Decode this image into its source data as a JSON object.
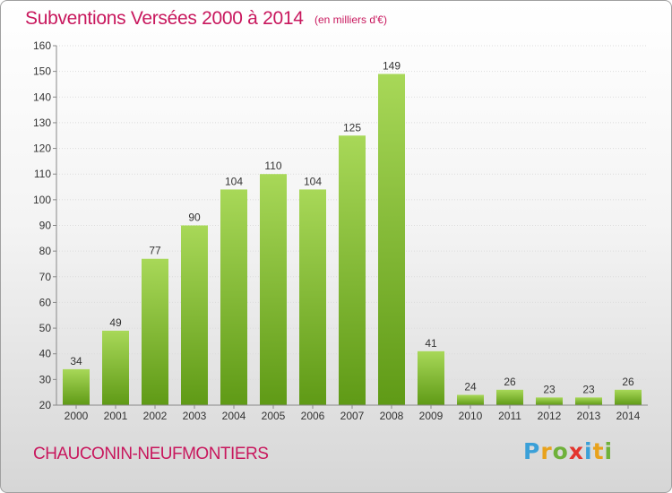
{
  "header": {
    "title": "Subventions Versées 2000 à 2014",
    "subtitle": "(en milliers d'€)"
  },
  "footer": {
    "town": "CHAUCONIN-NEUFMONTIERS",
    "logo": "Proxiti"
  },
  "colors": {
    "accent": "#c8175d",
    "bar_light": "#9fd24f",
    "bar_dark": "#5f9a16"
  },
  "chart_data": {
    "type": "bar",
    "categories": [
      "2000",
      "2001",
      "2002",
      "2003",
      "2004",
      "2005",
      "2006",
      "2007",
      "2008",
      "2009",
      "2010",
      "2011",
      "2012",
      "2013",
      "2014"
    ],
    "values": [
      34,
      49,
      77,
      90,
      104,
      110,
      104,
      125,
      149,
      41,
      24,
      26,
      23,
      23,
      26
    ],
    "title": "Subventions Versées 2000 à 2014",
    "ylim": [
      20,
      160
    ],
    "yticks": [
      20,
      30,
      40,
      50,
      60,
      70,
      80,
      90,
      100,
      110,
      120,
      130,
      140,
      150,
      160
    ],
    "grid": true,
    "data_labels": true
  }
}
